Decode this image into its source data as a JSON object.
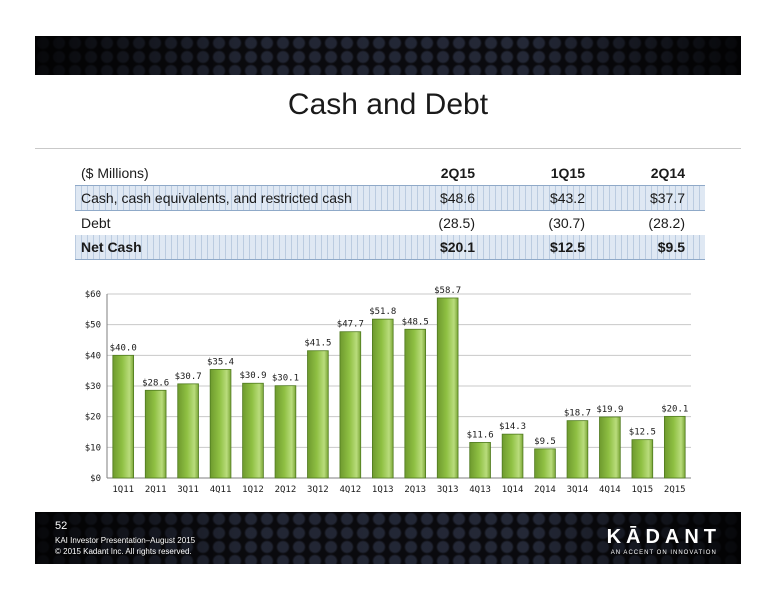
{
  "title": "Cash and Debt",
  "table": {
    "header": [
      "($ Millions)",
      "2Q15",
      "1Q15",
      "2Q14"
    ],
    "rows": [
      {
        "label": "Cash, cash equivalents, and restricted cash",
        "values": [
          "$48.6",
          "$43.2",
          "$37.7"
        ]
      },
      {
        "label": "Debt",
        "values": [
          "(28.5)",
          "(30.7)",
          "(28.2)"
        ]
      },
      {
        "label": "Net Cash",
        "values": [
          "$20.1",
          "$12.5",
          "$9.5"
        ]
      }
    ]
  },
  "chart_data": {
    "type": "bar",
    "categories": [
      "1Q11",
      "2Q11",
      "3Q11",
      "4Q11",
      "1Q12",
      "2Q12",
      "3Q12",
      "4Q12",
      "1Q13",
      "2Q13",
      "3Q13",
      "4Q13",
      "1Q14",
      "2Q14",
      "3Q14",
      "4Q14",
      "1Q15",
      "2Q15"
    ],
    "values": [
      40.0,
      28.6,
      30.7,
      35.4,
      30.9,
      30.1,
      41.5,
      47.7,
      51.8,
      48.5,
      58.7,
      11.6,
      14.3,
      9.5,
      18.7,
      19.9,
      12.5,
      20.1
    ],
    "data_labels": [
      "$40.0",
      "$28.6",
      "$30.7",
      "$35.4",
      "$30.9",
      "$30.1",
      "$41.5",
      "$47.7",
      "$51.8",
      "$48.5",
      "$58.7",
      "$11.6",
      "$14.3",
      "$9.5",
      "$18.7",
      "$19.9",
      "$12.5",
      "$20.1"
    ],
    "y_ticks": [
      0,
      10,
      20,
      30,
      40,
      50,
      60
    ],
    "y_tick_labels": [
      "$0",
      "$10",
      "$20",
      "$30",
      "$40",
      "$50",
      "$60"
    ],
    "ylim": [
      0,
      60
    ],
    "grid": true,
    "title": "",
    "xlabel": "",
    "ylabel": "",
    "bar_color": "#8fc043"
  },
  "footer": {
    "page_number": "52",
    "line1": "KAI Investor Presentation–August 2015",
    "line2": "© 2015 Kadant Inc. All rights reserved."
  },
  "logo": {
    "name": "KĀDANT",
    "tagline": "AN ACCENT ON INNOVATION"
  }
}
